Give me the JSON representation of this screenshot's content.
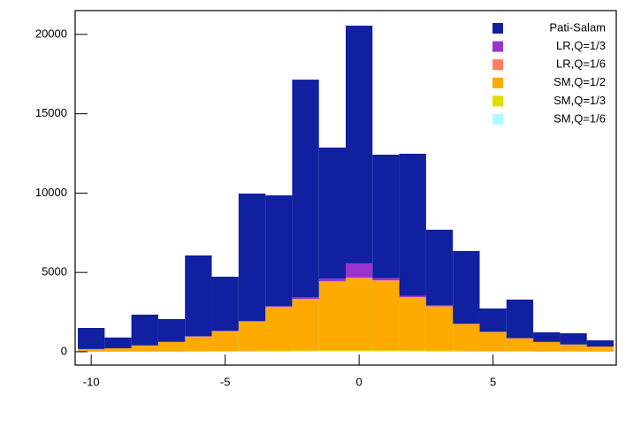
{
  "chart_data": {
    "type": "histogram",
    "stacked": true,
    "bins": [
      -10.5,
      -9.5,
      -8.5,
      -7.5,
      -6.5,
      -5.5,
      -4.5,
      -3.5,
      -2.5,
      -1.5,
      -0.5,
      0.5,
      1.5,
      2.5,
      3.5,
      4.5,
      5.5,
      6.5,
      7.5,
      8.5,
      9.5
    ],
    "series": [
      {
        "name": "Pati-Salam",
        "color": "#1020a0",
        "values": [
          1330,
          680,
          1940,
          1435,
          5095,
          3415,
          8030,
          6980,
          13720,
          8270,
          14980,
          7770,
          8950,
          4760,
          4575,
          1470,
          2430,
          610,
          710,
          390
        ]
      },
      {
        "name": "LR,Q=1/3",
        "color": "#9933cc",
        "values": [
          0,
          0,
          5,
          10,
          15,
          20,
          30,
          60,
          100,
          150,
          890,
          140,
          90,
          60,
          25,
          15,
          10,
          5,
          5,
          0
        ]
      },
      {
        "name": "LR,Q=1/6",
        "color": "#ff7f60",
        "values": [
          0,
          0,
          5,
          5,
          10,
          15,
          20,
          30,
          40,
          50,
          60,
          50,
          40,
          30,
          20,
          15,
          10,
          5,
          5,
          0
        ]
      },
      {
        "name": "SM,Q=1/2",
        "color": "#ffaa00",
        "values": [
          155,
          205,
          365,
          580,
          910,
          1230,
          1825,
          2710,
          3200,
          4300,
          4520,
          4360,
          3310,
          2760,
          1665,
          1180,
          800,
          580,
          425,
          315
        ]
      },
      {
        "name": "SM,Q=1/3",
        "color": "#dddd00",
        "values": [
          10,
          10,
          15,
          20,
          25,
          30,
          40,
          50,
          55,
          60,
          60,
          60,
          55,
          50,
          40,
          30,
          25,
          20,
          15,
          10
        ]
      },
      {
        "name": "SM,Q=1/6",
        "color": "#aaffff",
        "values": [
          5,
          5,
          10,
          10,
          15,
          20,
          25,
          30,
          35,
          40,
          40,
          40,
          35,
          30,
          25,
          20,
          15,
          10,
          10,
          5
        ]
      }
    ],
    "xlim": [
      -10.6,
      9.6
    ],
    "ylim": [
      -840,
      21500
    ],
    "xticks": [
      -10,
      -5,
      0,
      5
    ],
    "yticks": [
      0,
      5000,
      10000,
      15000,
      20000
    ],
    "legend": "upper right"
  }
}
